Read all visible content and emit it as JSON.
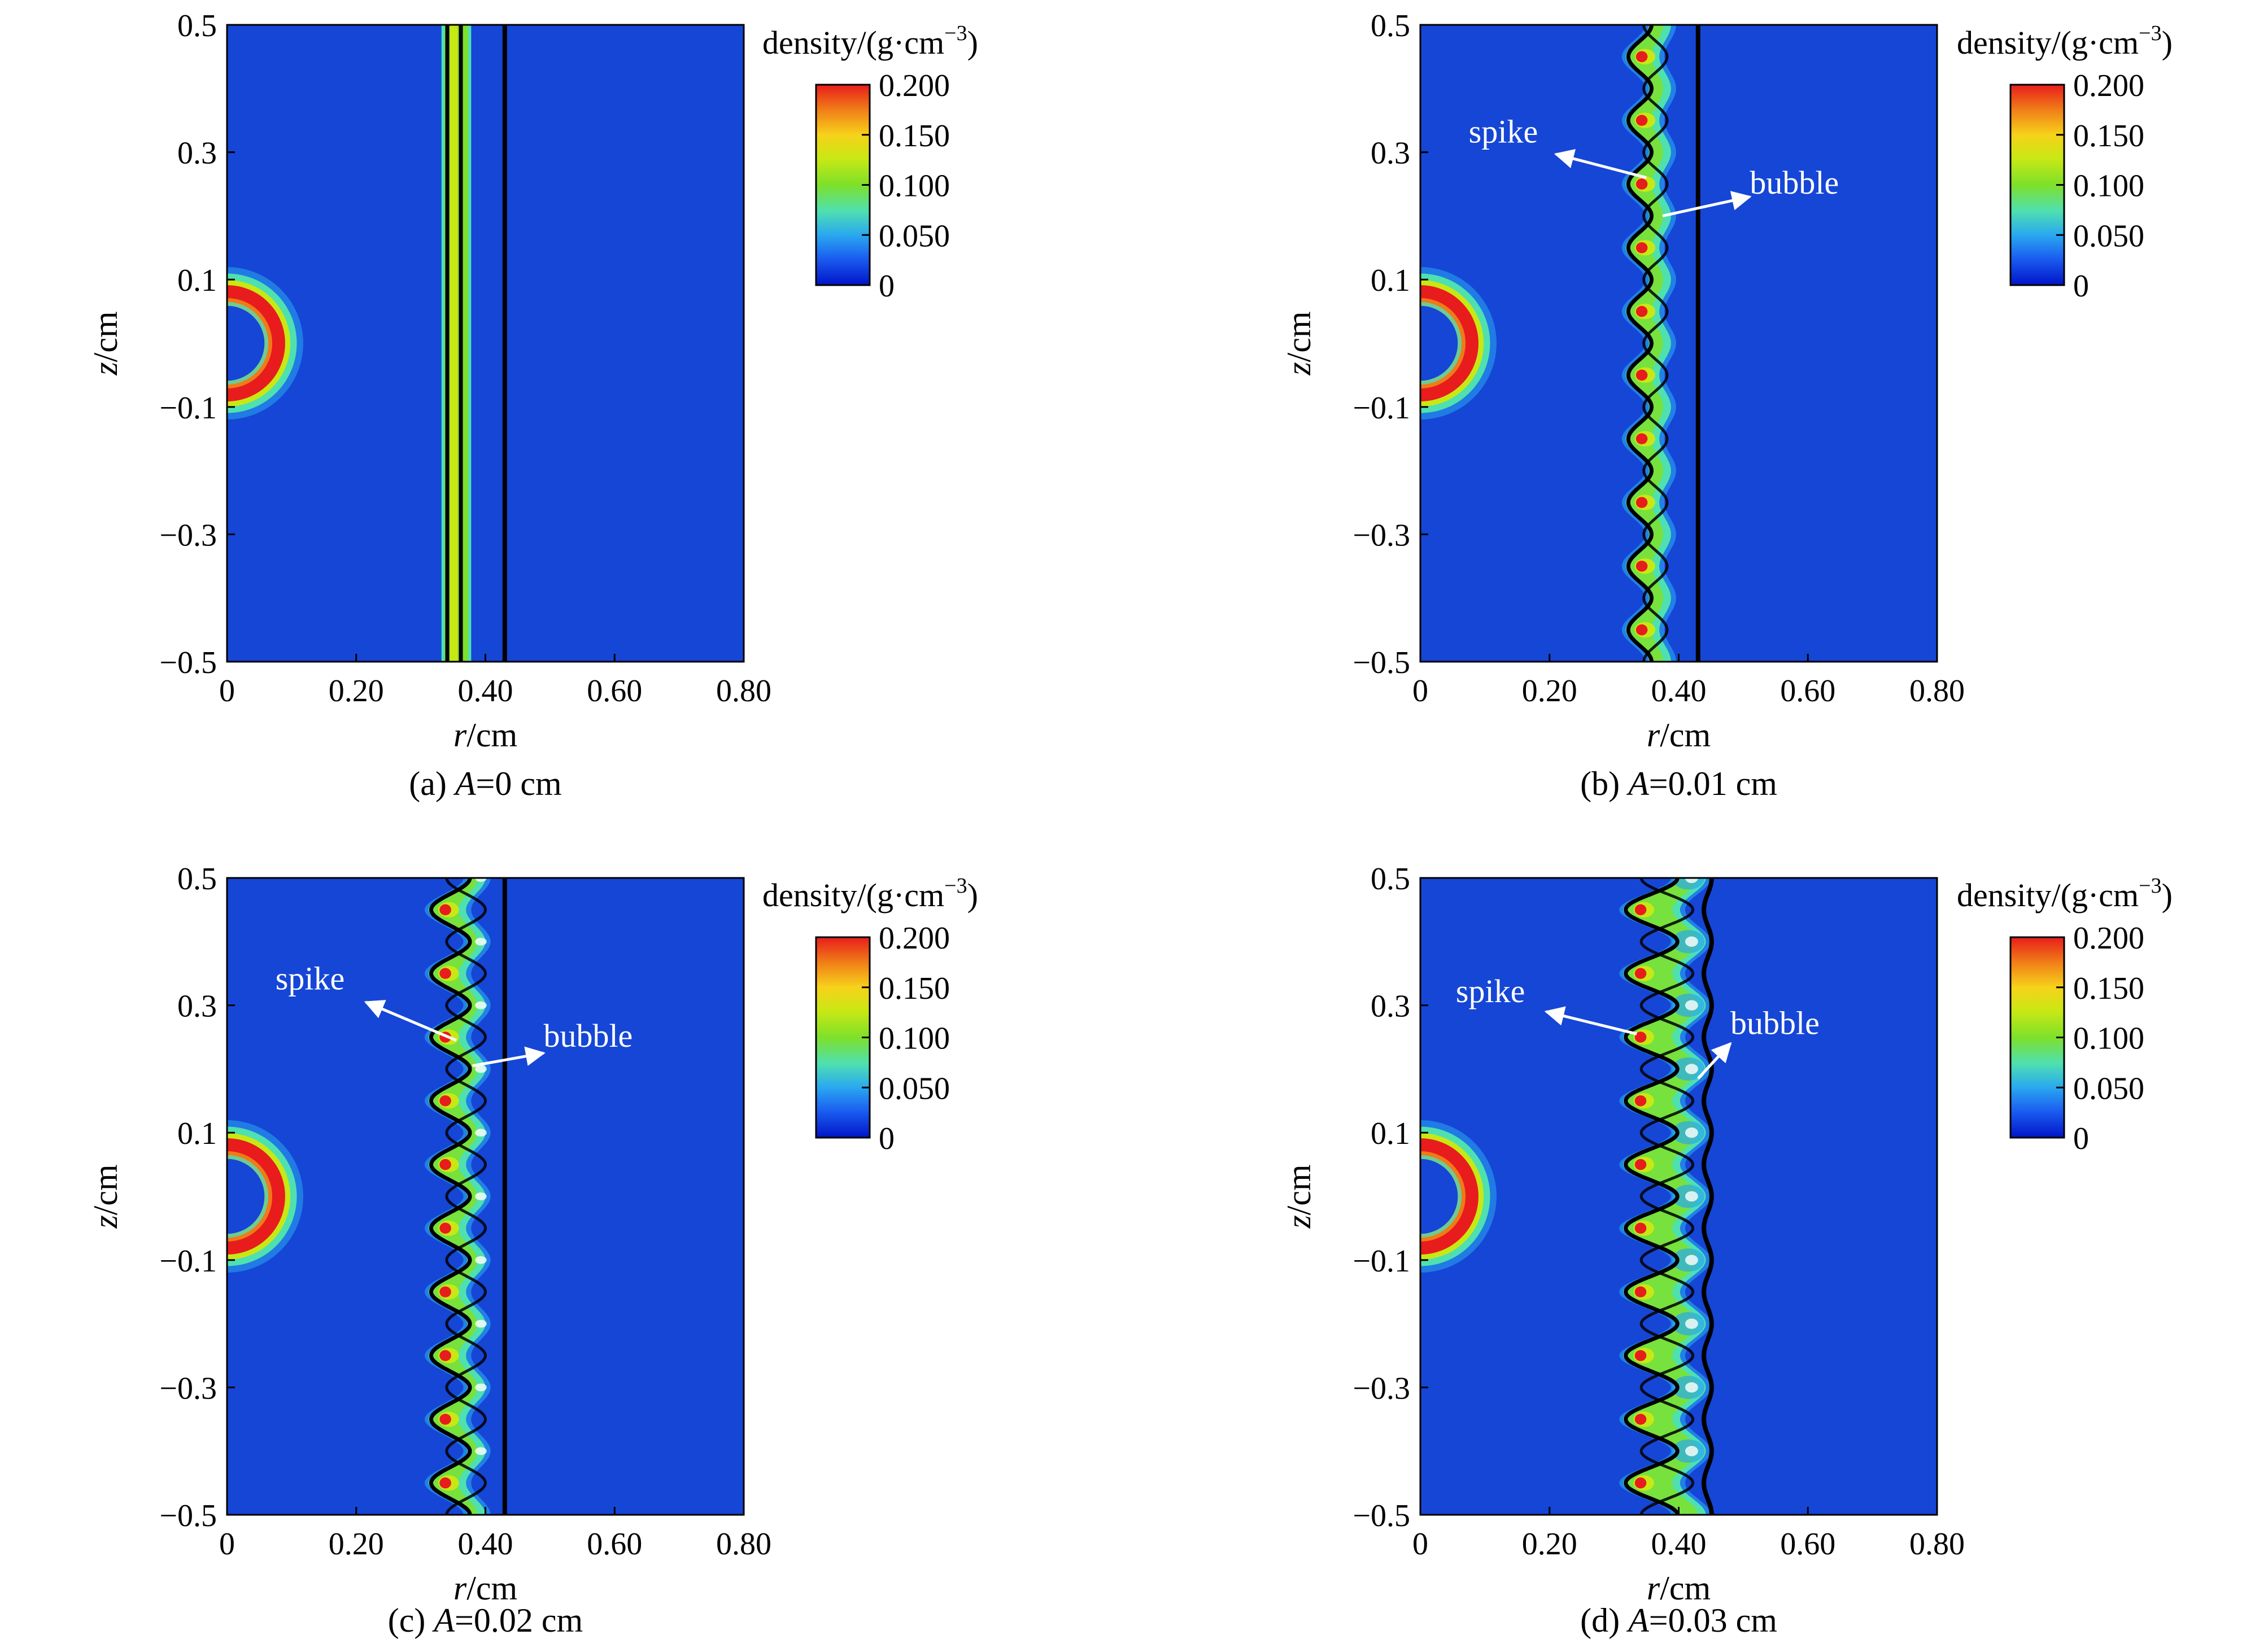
{
  "chart_data": [
    {
      "type": "heatmap",
      "caption_prefix": "(a) ",
      "caption_var": "A",
      "caption_suffix": "=0 cm",
      "amplitude_cm": 0,
      "xlabel_var": "r",
      "xlabel_unit": "/cm",
      "ylabel_var": "z",
      "ylabel_unit": "/cm",
      "xlim": [
        0,
        0.8
      ],
      "ylim": [
        -0.5,
        0.5
      ],
      "xticks": [
        "0",
        "0.20",
        "0.40",
        "0.60",
        "0.80"
      ],
      "yticks": [
        "0.5",
        "0.3",
        "0.1",
        "−0.1",
        "−0.3",
        "−0.5"
      ],
      "colorbar": {
        "title": "density/(g·cm",
        "title_exp": "−3",
        "title_close": ")",
        "ticks": [
          "0.200",
          "0.150",
          "0.100",
          "0.050",
          "0"
        ],
        "range": [
          0,
          0.2
        ]
      },
      "annotations": []
    },
    {
      "type": "heatmap",
      "caption_prefix": "(b) ",
      "caption_var": "A",
      "caption_suffix": "=0.01 cm",
      "amplitude_cm": 0.01,
      "xlabel_var": "r",
      "xlabel_unit": "/cm",
      "ylabel_var": "z",
      "ylabel_unit": "/cm",
      "xlim": [
        0,
        0.8
      ],
      "ylim": [
        -0.5,
        0.5
      ],
      "xticks": [
        "0",
        "0.20",
        "0.40",
        "0.60",
        "0.80"
      ],
      "yticks": [
        "0.5",
        "0.3",
        "0.1",
        "−0.1",
        "−0.3",
        "−0.5"
      ],
      "colorbar": {
        "title": "density/(g·cm",
        "title_exp": "−3",
        "title_close": ")",
        "ticks": [
          "0.200",
          "0.150",
          "0.100",
          "0.050",
          "0"
        ],
        "range": [
          0,
          0.2
        ]
      },
      "annotations": [
        {
          "text": "spike",
          "r": 0.075,
          "z": 0.315,
          "target_r": 0.35,
          "target_z": 0.26,
          "arrow_r": 0.21,
          "arrow_z": 0.297
        },
        {
          "text": "bubble",
          "r": 0.51,
          "z": 0.235,
          "target_r": 0.375,
          "target_z": 0.2,
          "arrow_r": 0.51,
          "arrow_z": 0.23
        }
      ]
    },
    {
      "type": "heatmap",
      "caption_prefix": "(c) ",
      "caption_var": "A",
      "caption_suffix": "=0.02 cm",
      "amplitude_cm": 0.02,
      "xlabel_var": "r",
      "xlabel_unit": "/cm",
      "ylabel_var": "z",
      "ylabel_unit": "/cm",
      "xlim": [
        0,
        0.8
      ],
      "ylim": [
        -0.5,
        0.5
      ],
      "xticks": [
        "0",
        "0.20",
        "0.40",
        "0.60",
        "0.80"
      ],
      "yticks": [
        "0.5",
        "0.3",
        "0.1",
        "−0.1",
        "−0.3",
        "−0.5"
      ],
      "colorbar": {
        "title": "density/(g·cm",
        "title_exp": "−3",
        "title_close": ")",
        "ticks": [
          "0.200",
          "0.150",
          "0.100",
          "0.050",
          "0"
        ],
        "range": [
          0,
          0.2
        ]
      },
      "annotations": [
        {
          "text": "spike",
          "r": 0.075,
          "z": 0.325,
          "target_r": 0.355,
          "target_z": 0.245,
          "arrow_r": 0.215,
          "arrow_z": 0.305
        },
        {
          "text": "bubble",
          "r": 0.49,
          "z": 0.235,
          "target_r": 0.38,
          "target_z": 0.205,
          "arrow_r": 0.49,
          "arrow_z": 0.225
        }
      ]
    },
    {
      "type": "heatmap",
      "caption_prefix": "(d) ",
      "caption_var": "A",
      "caption_suffix": "=0.03 cm",
      "amplitude_cm": 0.03,
      "xlabel_var": "r",
      "xlabel_unit": "/cm",
      "ylabel_var": "z",
      "ylabel_unit": "/cm",
      "xlim": [
        0,
        0.8
      ],
      "ylim": [
        -0.5,
        0.5
      ],
      "xticks": [
        "0",
        "0.20",
        "0.40",
        "0.60",
        "0.80"
      ],
      "yticks": [
        "0.5",
        "0.3",
        "0.1",
        "−0.1",
        "−0.3",
        "−0.5"
      ],
      "colorbar": {
        "title": "density/(g·cm",
        "title_exp": "−3",
        "title_close": ")",
        "ticks": [
          "0.200",
          "0.150",
          "0.100",
          "0.050",
          "0"
        ],
        "range": [
          0,
          0.2
        ]
      },
      "annotations": [
        {
          "text": "spike",
          "r": 0.055,
          "z": 0.305,
          "target_r": 0.335,
          "target_z": 0.255,
          "arrow_r": 0.195,
          "arrow_z": 0.29
        },
        {
          "text": "bubble",
          "r": 0.48,
          "z": 0.255,
          "target_r": 0.43,
          "target_z": 0.185,
          "arrow_r": 0.48,
          "arrow_z": 0.24
        }
      ]
    }
  ],
  "colors": {
    "background_field": "#1546d6",
    "colormap": [
      "#0015c8",
      "#1a5cf0",
      "#2aa8f0",
      "#4fe0b0",
      "#7ee02a",
      "#c8e814",
      "#f7d21a",
      "#f07a18",
      "#e81c1c"
    ],
    "interface_line": "#000000",
    "annotation_text": "#ffffff"
  }
}
